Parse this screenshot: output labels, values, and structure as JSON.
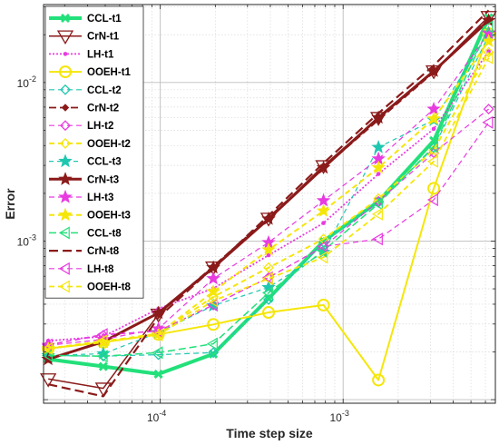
{
  "chart_data": {
    "type": "line",
    "xlabel": "Time step size",
    "ylabel": "Error",
    "xscale": "log",
    "yscale": "log",
    "xlim": [
      2.3e-05,
      0.0068
    ],
    "ylim": [
      9.5e-05,
      0.031
    ],
    "grid": true,
    "legend_position": "top-left",
    "x_ticks": [
      {
        "value": 0.0001,
        "mant": "10",
        "exp": "-4"
      },
      {
        "value": 0.001,
        "mant": "10",
        "exp": "-3"
      }
    ],
    "y_ticks": [
      {
        "value": 0.001,
        "mant": "10",
        "exp": "-3"
      },
      {
        "value": 0.01,
        "mant": "10",
        "exp": "-2"
      }
    ],
    "x": [
      2.44e-05,
      4.88e-05,
      9.77e-05,
      0.000195,
      0.000391,
      0.000781,
      0.00156,
      0.00313,
      0.00625
    ],
    "series": [
      {
        "name": "CCL-t1",
        "color": "#22e07a",
        "dash": "",
        "width": 4.0,
        "marker": "x",
        "values": [
          0.00018,
          0.000162,
          0.000145,
          0.000194,
          0.000435,
          0.001,
          0.00178,
          0.0043,
          0.0256
        ]
      },
      {
        "name": "CrN-t1",
        "color": "#8b1a1a",
        "dash": "",
        "width": 1.5,
        "marker": "triangle-down",
        "values": [
          0.000135,
          0.000118,
          0.000345,
          0.000685,
          0.00139,
          0.00298,
          0.006,
          0.0118,
          0.026
        ]
      },
      {
        "name": "LH-t1",
        "color": "#e83be0",
        "dash": "2,2",
        "width": 1.8,
        "marker": "dot",
        "values": [
          0.000235,
          0.00025,
          0.000375,
          0.000503,
          0.000815,
          0.0013,
          0.00265,
          0.0051,
          0.0157
        ]
      },
      {
        "name": "OOEH-t1",
        "color": "#f5e60a",
        "dash": "",
        "width": 2.0,
        "marker": "circle",
        "values": [
          0.00021,
          0.00023,
          0.000258,
          0.000298,
          0.000355,
          0.000395,
          0.000133,
          0.00215,
          0.0203
        ]
      },
      {
        "name": "CCL-t2",
        "color": "#20c7b0",
        "dash": "6,4",
        "width": 1.2,
        "marker": "diamond",
        "values": [
          0.00019,
          0.000188,
          0.000192,
          0.000198,
          0.000428,
          0.00098,
          0.00175,
          0.00388,
          0.0198
        ]
      },
      {
        "name": "CrN-t2",
        "color": "#8b1a1a",
        "dash": "8,4",
        "width": 1.8,
        "marker": "diamond-filled",
        "values": [
          0.00018,
          0.000233,
          0.00035,
          0.000695,
          0.00141,
          0.0029,
          0.0058,
          0.0116,
          0.0252
        ]
      },
      {
        "name": "LH-t2",
        "color": "#e83be0",
        "dash": "6,4",
        "width": 1.2,
        "marker": "diamond",
        "values": [
          0.000222,
          0.000255,
          0.000272,
          0.000395,
          0.00059,
          0.00092,
          0.00178,
          0.0036,
          0.0068
        ]
      },
      {
        "name": "OOEH-t2",
        "color": "#f5e60a",
        "dash": "6,4",
        "width": 2.0,
        "marker": "diamond",
        "values": [
          0.00021,
          0.000232,
          0.000262,
          0.000445,
          0.00068,
          0.00103,
          0.00185,
          0.00375,
          0.0155
        ]
      },
      {
        "name": "CCL-t3",
        "color": "#20c7b0",
        "dash": "5,4",
        "width": 1.2,
        "marker": "star",
        "values": [
          0.00019,
          0.000195,
          0.000265,
          0.000392,
          0.00051,
          0.00085,
          0.0039,
          0.0058,
          0.0205
        ]
      },
      {
        "name": "CrN-t3",
        "color": "#8b1a1a",
        "dash": "",
        "width": 3.0,
        "marker": "star-filled",
        "values": [
          0.00018,
          0.000232,
          0.000352,
          0.00068,
          0.00138,
          0.0029,
          0.006,
          0.0118,
          0.0246
        ]
      },
      {
        "name": "LH-t3",
        "color": "#e83be0",
        "dash": "6,4",
        "width": 1.2,
        "marker": "star",
        "values": [
          0.00022,
          0.00024,
          0.00028,
          0.00058,
          0.00098,
          0.0018,
          0.0033,
          0.0068,
          0.0205
        ]
      },
      {
        "name": "OOEH-t3",
        "color": "#f5e60a",
        "dash": "6,4",
        "width": 2.0,
        "marker": "star",
        "values": [
          0.00021,
          0.00023,
          0.00026,
          0.00048,
          0.00088,
          0.00155,
          0.0029,
          0.0059,
          0.0182
        ]
      },
      {
        "name": "CCL-t8",
        "color": "#22e07a",
        "dash": "8,4",
        "width": 1.5,
        "marker": "triangle-left",
        "values": [
          0.00019,
          0.000188,
          0.000198,
          0.000225,
          0.000472,
          0.00087,
          0.00172,
          0.00395,
          0.0224
        ]
      },
      {
        "name": "CrN-t8",
        "color": "#8b1a1a",
        "dash": "10,5",
        "width": 2.2,
        "marker": "none",
        "values": [
          0.000125,
          0.000105,
          0.00033,
          0.00068,
          0.00145,
          0.0031,
          0.0064,
          0.0128,
          0.0285
        ]
      },
      {
        "name": "LH-t8",
        "color": "#e83be0",
        "dash": "6,4",
        "width": 1.2,
        "marker": "triangle-left",
        "values": [
          0.000222,
          0.000258,
          0.00027,
          0.000395,
          0.000588,
          0.000925,
          0.00103,
          0.00182,
          0.0056
        ]
      },
      {
        "name": "OOEH-t8",
        "color": "#f5e60a",
        "dash": "6,4",
        "width": 1.8,
        "marker": "triangle-left",
        "values": [
          0.00021,
          0.000235,
          0.000256,
          0.00042,
          0.00058,
          0.00079,
          0.00148,
          0.00318,
          0.0143
        ]
      }
    ]
  }
}
